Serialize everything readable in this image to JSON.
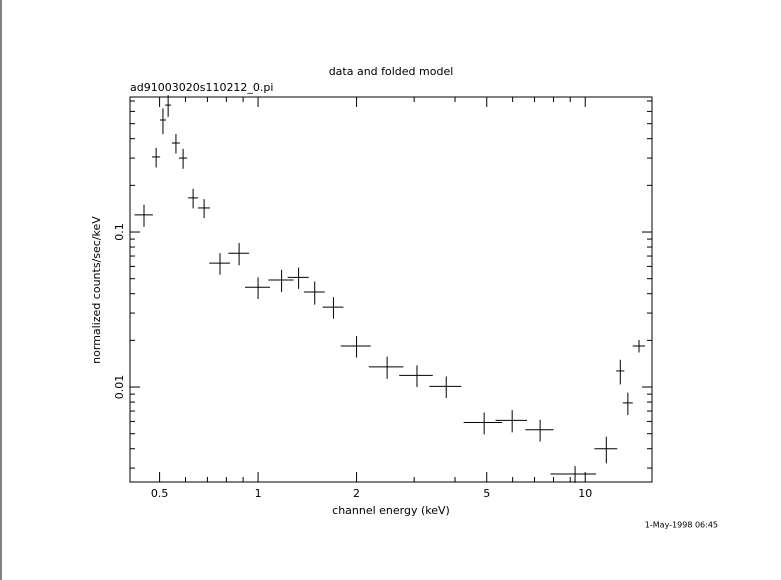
{
  "chart_data": {
    "type": "scatter",
    "title": "data and folded model",
    "subtitle": "ad91003020s110212_0.pi",
    "xlabel": "channel energy (keV)",
    "ylabel": "normalized counts/sec/keV",
    "timestamp": "1-May-1998 06:45",
    "xscale": "log",
    "yscale": "log",
    "color": "#000000",
    "xlim": [
      0.406,
      16.0
    ],
    "ylim": [
      0.00244,
      0.743
    ],
    "xticks": [
      0.5,
      1,
      2,
      5,
      10
    ],
    "yticks": [
      0.01,
      0.1
    ],
    "xminorticks": [
      0.6,
      0.7,
      0.8,
      0.9,
      3,
      4,
      6,
      7,
      8,
      9
    ],
    "yminorticks": [
      0.003,
      0.004,
      0.005,
      0.006,
      0.007,
      0.008,
      0.009,
      0.02,
      0.03,
      0.04,
      0.05,
      0.06,
      0.07,
      0.08,
      0.09,
      0.2,
      0.3,
      0.4,
      0.5,
      0.6,
      0.7
    ],
    "x": [
      0.448,
      0.488,
      0.512,
      0.531,
      0.561,
      0.59,
      0.633,
      0.684,
      0.765,
      0.875,
      1.0,
      1.18,
      1.33,
      1.49,
      1.7,
      2.0,
      2.48,
      3.06,
      3.76,
      4.91,
      5.98,
      7.28,
      9.31,
      11.6,
      12.8,
      13.5,
      14.6
    ],
    "xerr": [
      0.029,
      0.014,
      0.011,
      0.011,
      0.016,
      0.017,
      0.022,
      0.029,
      0.056,
      0.064,
      0.088,
      0.104,
      0.098,
      0.109,
      0.124,
      0.21,
      0.3,
      0.36,
      0.42,
      0.66,
      0.66,
      0.72,
      1.48,
      0.93,
      0.37,
      0.48,
      0.63
    ],
    "y": [
      0.129,
      0.305,
      0.528,
      0.659,
      0.375,
      0.3,
      0.166,
      0.143,
      0.063,
      0.073,
      0.044,
      0.049,
      0.051,
      0.041,
      0.0328,
      0.0184,
      0.0135,
      0.0119,
      0.0101,
      0.0059,
      0.0061,
      0.0053,
      0.00275,
      0.004,
      0.0127,
      0.0079,
      0.0184
    ],
    "yerr": [
      0.021,
      0.044,
      0.1,
      0.105,
      0.054,
      0.044,
      0.024,
      0.02,
      0.01,
      0.012,
      0.007,
      0.008,
      0.008,
      0.007,
      0.0052,
      0.0029,
      0.0022,
      0.0019,
      0.0016,
      0.00095,
      0.001,
      0.00085,
      0.00034,
      0.00078,
      0.0023,
      0.0013,
      0.0017
    ]
  }
}
